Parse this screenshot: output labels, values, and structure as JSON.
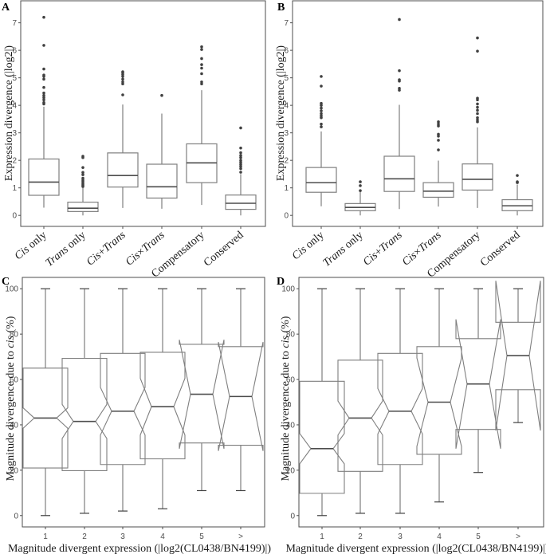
{
  "chart_data": [
    {
      "panel": "A",
      "type": "box",
      "notched": false,
      "xlabel": "",
      "ylabel": "Expression divergence (|log2|)",
      "ylim": [
        -0.4,
        7.8
      ],
      "yticks": [
        0,
        1,
        2,
        3,
        4,
        5,
        6,
        7
      ],
      "categories": [
        {
          "text": "Cis",
          "rest": " only",
          "italic_first": true
        },
        {
          "text": "Trans",
          "rest": " only",
          "italic_first": true
        },
        {
          "text": "Cis+Trans",
          "rest": "",
          "italic_first": true
        },
        {
          "text": "Cis×Trans",
          "rest": "",
          "italic_first": true
        },
        {
          "text": "",
          "rest": "Compensatory",
          "italic_first": false
        },
        {
          "text": "",
          "rest": "Conserved",
          "italic_first": false
        }
      ],
      "boxes": [
        {
          "lower": 0.28,
          "q1": 0.73,
          "median": 1.21,
          "q3": 2.05,
          "upper": 3.95,
          "outliers": [
            4.05,
            4.1,
            4.2,
            4.28,
            4.36,
            4.45,
            4.65,
            4.95,
            5.05,
            5.1,
            5.32,
            6.18,
            7.2
          ]
        },
        {
          "lower": 0.0,
          "q1": 0.14,
          "median": 0.26,
          "q3": 0.48,
          "upper": 1.02,
          "outliers": [
            1.05,
            1.1,
            1.15,
            1.22,
            1.28,
            1.35,
            1.48,
            1.56,
            1.74,
            2.1,
            2.15
          ]
        },
        {
          "lower": 0.27,
          "q1": 1.03,
          "median": 1.45,
          "q3": 2.27,
          "upper": 4.03,
          "outliers": [
            4.38,
            4.78,
            4.85,
            4.95,
            5.05,
            5.12,
            5.18,
            5.22
          ]
        },
        {
          "lower": 0.24,
          "q1": 0.63,
          "median": 1.04,
          "q3": 1.86,
          "upper": 3.7,
          "outliers": [
            4.36
          ]
        },
        {
          "lower": 0.38,
          "q1": 1.19,
          "median": 1.91,
          "q3": 2.6,
          "upper": 4.55,
          "outliers": [
            4.78,
            4.85,
            5.15,
            5.35,
            5.48,
            5.7,
            6.03,
            6.13
          ]
        },
        {
          "lower": 0.0,
          "q1": 0.22,
          "median": 0.44,
          "q3": 0.74,
          "upper": 1.5,
          "outliers": [
            1.57,
            1.7,
            1.78,
            1.85,
            1.93,
            2.0,
            2.1,
            2.18,
            2.28,
            2.45,
            3.18
          ]
        }
      ]
    },
    {
      "panel": "B",
      "type": "box",
      "notched": false,
      "xlabel": "",
      "ylabel": "Expression divergence (|log2|)",
      "ylim": [
        -0.4,
        7.8
      ],
      "yticks": [
        0,
        1,
        2,
        3,
        4,
        5,
        6,
        7
      ],
      "categories": [
        {
          "text": "Cis",
          "rest": " only",
          "italic_first": true
        },
        {
          "text": "Trans",
          "rest": " only",
          "italic_first": true
        },
        {
          "text": "Cis+Trans",
          "rest": "",
          "italic_first": true
        },
        {
          "text": "Cis×Trans",
          "rest": "",
          "italic_first": true
        },
        {
          "text": "",
          "rest": "Compensatory",
          "italic_first": false
        },
        {
          "text": "",
          "rest": "Conserved",
          "italic_first": false
        }
      ],
      "boxes": [
        {
          "lower": 0.33,
          "q1": 0.84,
          "median": 1.19,
          "q3": 1.74,
          "upper": 3.05,
          "outliers": [
            3.22,
            3.32,
            3.55,
            3.62,
            3.7,
            3.8,
            3.9,
            4.0,
            4.07,
            4.7,
            5.05
          ]
        },
        {
          "lower": 0.0,
          "q1": 0.17,
          "median": 0.29,
          "q3": 0.43,
          "upper": 0.85,
          "outliers": [
            0.9,
            1.08,
            1.22
          ]
        },
        {
          "lower": 0.23,
          "q1": 0.87,
          "median": 1.33,
          "q3": 2.15,
          "upper": 4.02,
          "outliers": [
            4.55,
            4.62,
            4.88,
            4.93,
            5.26,
            7.12
          ]
        },
        {
          "lower": 0.32,
          "q1": 0.66,
          "median": 0.88,
          "q3": 1.19,
          "upper": 1.99,
          "outliers": [
            2.38,
            2.73,
            2.88,
            2.95,
            3.25,
            3.32,
            3.4
          ]
        },
        {
          "lower": 0.27,
          "q1": 0.92,
          "median": 1.31,
          "q3": 1.87,
          "upper": 3.2,
          "outliers": [
            3.4,
            3.47,
            3.55,
            3.7,
            3.82,
            3.93,
            4.05,
            4.2,
            4.26,
            5.97,
            6.45
          ]
        },
        {
          "lower": 0.0,
          "q1": 0.17,
          "median": 0.35,
          "q3": 0.57,
          "upper": 1.12,
          "outliers": [
            1.19,
            1.22,
            1.45
          ]
        }
      ]
    },
    {
      "panel": "C",
      "type": "box",
      "notched": true,
      "xlabel": "Magnitude divergent expression (|log2(CL0438/BN4199)|)",
      "ylabel": "Magnitude divergence due to cis (%)",
      "ylim": [
        -5,
        105
      ],
      "yticks": [
        0,
        20,
        40,
        60,
        80,
        100
      ],
      "categories": [
        "1",
        "2",
        "3",
        "4",
        "5",
        ">"
      ],
      "boxes": [
        {
          "lower": 0,
          "q1": 21,
          "notch_low": 38.5,
          "median": 43,
          "notch_high": 47.5,
          "q3": 65,
          "upper": 100
        },
        {
          "lower": 1,
          "q1": 19.8,
          "notch_low": 34,
          "median": 41.5,
          "notch_high": 49,
          "q3": 69.3,
          "upper": 100
        },
        {
          "lower": 2,
          "q1": 22.5,
          "notch_low": 35.5,
          "median": 46,
          "notch_high": 56.5,
          "q3": 71.5,
          "upper": 100
        },
        {
          "lower": 3,
          "q1": 25,
          "notch_low": 35.5,
          "median": 48,
          "notch_high": 60.5,
          "q3": 72,
          "upper": 100
        },
        {
          "lower": 11,
          "q1": 32,
          "notch_low": 29.5,
          "median": 53.5,
          "notch_high": 77.5,
          "q3": 75.5,
          "upper": 100
        },
        {
          "lower": 11,
          "q1": 31,
          "notch_low": 28.5,
          "median": 52.5,
          "notch_high": 76.5,
          "q3": 74.5,
          "upper": 100
        }
      ]
    },
    {
      "panel": "D",
      "type": "box",
      "notched": true,
      "xlabel": "Magnitude divergent expression (|log2(CL0438/BN4199)|)",
      "ylabel": "Magnitude divergence due to cis (%)",
      "ylim": [
        -5,
        105
      ],
      "yticks": [
        0,
        20,
        40,
        60,
        80,
        100
      ],
      "categories": [
        "1",
        "2",
        "3",
        "4",
        "5",
        ">"
      ],
      "boxes": [
        {
          "lower": 0,
          "q1": 9.8,
          "notch_low": 22.8,
          "median": 29.5,
          "notch_high": 36.2,
          "q3": 59.2,
          "upper": 100
        },
        {
          "lower": 1,
          "q1": 19.5,
          "notch_low": 35.5,
          "median": 43,
          "notch_high": 50.5,
          "q3": 68.5,
          "upper": 100
        },
        {
          "lower": 1,
          "q1": 22.5,
          "notch_low": 36,
          "median": 46,
          "notch_high": 56,
          "q3": 71.5,
          "upper": 100
        },
        {
          "lower": 6,
          "q1": 27,
          "notch_low": 30.5,
          "median": 50,
          "notch_high": 69.5,
          "q3": 74.5,
          "upper": 100
        },
        {
          "lower": 19,
          "q1": 38,
          "notch_low": 29.5,
          "median": 58,
          "notch_high": 86.5,
          "q3": 78,
          "upper": 100
        },
        {
          "lower": 41,
          "q1": 55.5,
          "notch_low": 37.5,
          "median": 70.5,
          "notch_high": 103.5,
          "q3": 85.2,
          "upper": 100
        }
      ]
    }
  ],
  "panels": {
    "A": {
      "letter": "A"
    },
    "B": {
      "letter": "B"
    },
    "C": {
      "letter": "C"
    },
    "D": {
      "letter": "D"
    }
  }
}
